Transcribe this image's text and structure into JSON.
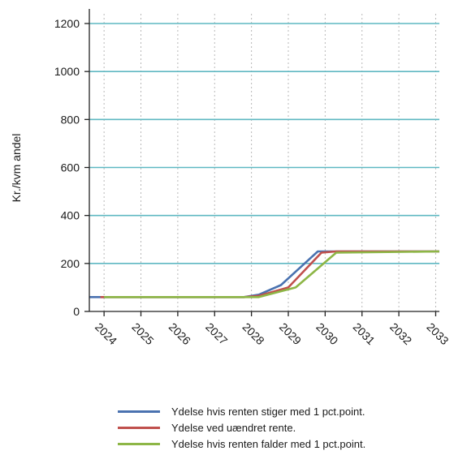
{
  "chart_data": {
    "type": "line",
    "ylabel": "Kr./kvm andel",
    "xlabel": "",
    "title": "",
    "ylim": [
      0,
      1200
    ],
    "yticks": [
      0,
      200,
      400,
      600,
      800,
      1000,
      1200
    ],
    "xlim": [
      2023.6,
      2033.1
    ],
    "xticks": [
      2024,
      2025,
      2026,
      2027,
      2028,
      2029,
      2030,
      2031,
      2032,
      2033
    ],
    "grid": "horizontal gridlines at y ticks, dotted vertical at year ticks",
    "legend_position": "bottom",
    "series": [
      {
        "name": "Ydelse hvis renten stiger med 1 pct.point.",
        "color": "#4a72b0",
        "x": [
          2023.6,
          2027.8,
          2028.2,
          2028.8,
          2029.8,
          2030.2,
          2033.1
        ],
        "y": [
          60,
          60,
          70,
          110,
          250,
          250,
          250
        ]
      },
      {
        "name": "Ydelse ved uændret rente.",
        "color": "#c0504d",
        "x": [
          2023.9,
          2027.8,
          2028.2,
          2029.0,
          2029.9,
          2030.3,
          2033.1
        ],
        "y": [
          60,
          60,
          65,
          100,
          245,
          250,
          250
        ]
      },
      {
        "name": "Ydelse hvis renten falder med 1 pct.point.",
        "color": "#8db646",
        "x": [
          2024.0,
          2027.8,
          2028.2,
          2029.2,
          2030.3,
          2033.1
        ],
        "y": [
          60,
          60,
          60,
          100,
          245,
          250
        ]
      }
    ],
    "gridline_color": "#5fb8c2",
    "axis_color": "#222222"
  }
}
